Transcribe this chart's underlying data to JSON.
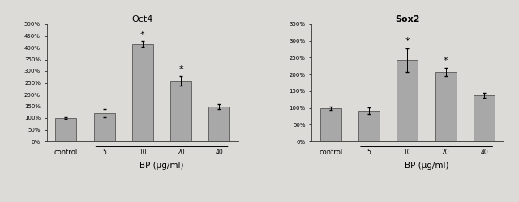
{
  "chart1": {
    "title": "Oct4",
    "title_bold": false,
    "categories": [
      "control",
      "5",
      "10",
      "20",
      "40"
    ],
    "values": [
      100,
      120,
      415,
      258,
      147
    ],
    "errors": [
      5,
      18,
      12,
      20,
      10
    ],
    "star": [
      false,
      false,
      true,
      true,
      false
    ],
    "ylim": [
      0,
      500
    ],
    "yticks": [
      0,
      50,
      100,
      150,
      200,
      250,
      300,
      350,
      400,
      450,
      500
    ],
    "ytick_labels": [
      "0%",
      "50%",
      "100%",
      "150%",
      "200%",
      "250%",
      "300%",
      "350%",
      "400%",
      "450%",
      "500%"
    ],
    "xlabel": "BP (μg/ml)",
    "bar_color": "#a8a8a8",
    "bar_edge_color": "#404040",
    "bar_width": 0.55
  },
  "chart2": {
    "title": "Sox2",
    "title_bold": true,
    "categories": [
      "control",
      "5",
      "10",
      "20",
      "40"
    ],
    "values": [
      100,
      92,
      243,
      208,
      138
    ],
    "errors": [
      5,
      10,
      35,
      12,
      8
    ],
    "star": [
      false,
      false,
      true,
      true,
      false
    ],
    "ylim": [
      0,
      350
    ],
    "yticks": [
      0,
      50,
      100,
      150,
      200,
      250,
      300,
      350
    ],
    "ytick_labels": [
      "0%",
      "50%",
      "100%",
      "150%",
      "200%",
      "250%",
      "300%",
      "350%"
    ],
    "xlabel": "BP (μg/ml)",
    "bar_color": "#a8a8a8",
    "bar_edge_color": "#404040",
    "bar_width": 0.55
  },
  "bg_color": "#dddbd8",
  "title_fontsize": 8,
  "tick_fontsize": 5,
  "xlabel_fontsize": 7.5,
  "star_fontsize": 8,
  "control_fontsize": 6,
  "bp_tick_fontsize": 5.5
}
